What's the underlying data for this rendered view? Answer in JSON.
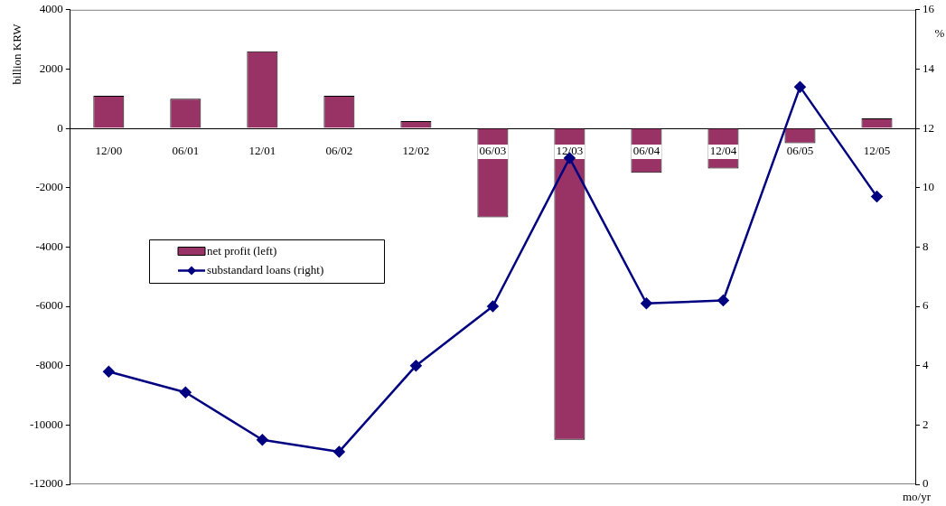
{
  "chart_data": {
    "type": "bar",
    "categories": [
      "12/00",
      "06/01",
      "12/01",
      "06/02",
      "12/02",
      "06/03",
      "12/03",
      "06/04",
      "12/04",
      "06/05",
      "12/05"
    ],
    "series": [
      {
        "name": "net profit (left)",
        "color": "#993366",
        "values": [
          1100,
          1000,
          2600,
          1100,
          250,
          -3000,
          -10500,
          -1500,
          -1350,
          -500,
          340
        ]
      },
      {
        "name": "substandard loans (right)",
        "type": "line",
        "axis": "y2",
        "color": "#000080",
        "values": [
          3.8,
          3.1,
          1.5,
          1.1,
          4.0,
          6.0,
          11.0,
          6.1,
          6.2,
          13.4,
          9.7
        ]
      }
    ],
    "ylabel": "billion KRW",
    "y2label": "%",
    "xlabel": "mo/yr",
    "ylim": [
      -12000,
      4000
    ],
    "yticks": [
      -12000,
      -10000,
      -8000,
      -6000,
      -4000,
      -2000,
      0,
      2000,
      4000
    ],
    "y2lim": [
      0,
      16
    ],
    "y2ticks": [
      0,
      2,
      4,
      6,
      8,
      10,
      12,
      14,
      16
    ],
    "grid": false,
    "legend": "left",
    "marker": "diamond",
    "line_style": "solid"
  }
}
